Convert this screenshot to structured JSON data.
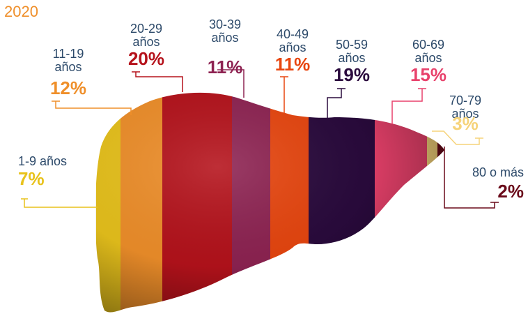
{
  "chart_data": {
    "type": "stripes",
    "title": "2020",
    "categories": [
      "1-9 años",
      "11-19 años",
      "20-29 años",
      "30-39 años",
      "40-49 años",
      "50-59 años",
      "60-69 años",
      "70-79 años",
      "80 o más"
    ],
    "values": [
      7,
      12,
      20,
      11,
      11,
      19,
      15,
      3,
      2
    ],
    "value_labels": [
      "7%",
      "12%",
      "20%",
      "11%",
      "11%",
      "19%",
      "15%",
      "3%",
      "2%"
    ],
    "colors": [
      "#e8c21c",
      "#ef8f2a",
      "#b5121b",
      "#8e2352",
      "#e8460f",
      "#2a0a3d",
      "#e8416b",
      "#f6d37a",
      "#6a0a1a"
    ]
  }
}
